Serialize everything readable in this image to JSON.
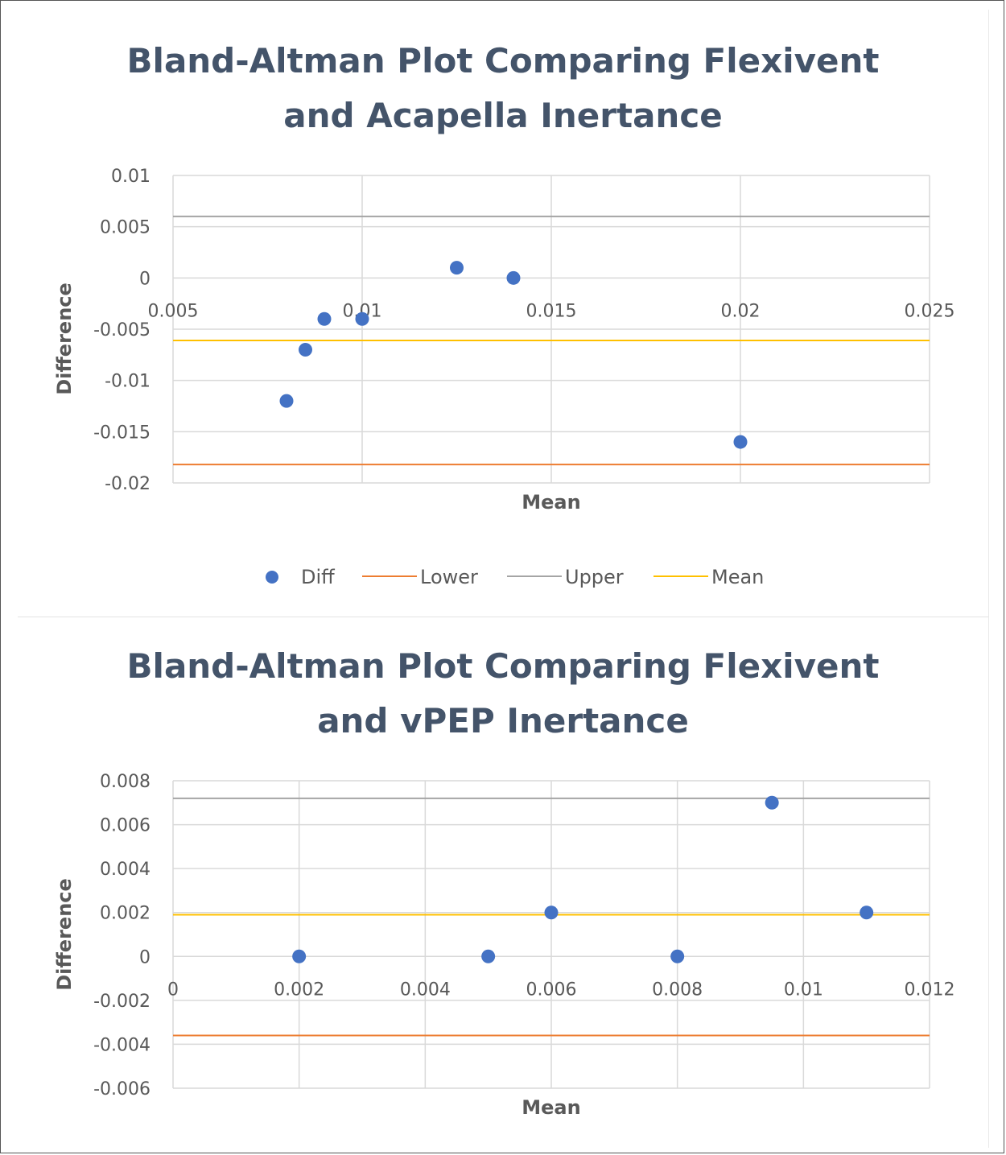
{
  "chart_data": [
    {
      "type": "scatter",
      "title_line1": "Bland-Altman Plot Comparing Flexivent",
      "title_line2": "and Acapella Inertance",
      "xlabel": "Mean",
      "ylabel": "Difference",
      "xlim": [
        0.005,
        0.025
      ],
      "ylim": [
        -0.02,
        0.01
      ],
      "x_ticks": [
        "0.005",
        "0.01",
        "0.015",
        "0.02",
        "0.025"
      ],
      "y_ticks": [
        "0.01",
        "0.005",
        "0",
        "-0.005",
        "-0.01",
        "-0.015",
        "-0.02"
      ],
      "grid": true,
      "legend_position": "bottom",
      "series": [
        {
          "name": "Diff",
          "kind": "scatter",
          "color": "#4472c4",
          "points": [
            [
              0.008,
              -0.012
            ],
            [
              0.0085,
              -0.007
            ],
            [
              0.009,
              -0.004
            ],
            [
              0.01,
              -0.004
            ],
            [
              0.0125,
              0.001
            ],
            [
              0.014,
              0.0
            ],
            [
              0.02,
              -0.016
            ]
          ]
        },
        {
          "name": "Lower",
          "kind": "hline",
          "color": "#ed7d31",
          "y": -0.0182
        },
        {
          "name": "Upper",
          "kind": "hline",
          "color": "#a5a5a5",
          "y": 0.006
        },
        {
          "name": "Mean",
          "kind": "hline",
          "color": "#ffc000",
          "y": -0.0061
        }
      ]
    },
    {
      "type": "scatter",
      "title_line1": "Bland-Altman Plot Comparing Flexivent",
      "title_line2": "and vPEP Inertance",
      "xlabel": "Mean",
      "ylabel": "Difference",
      "xlim": [
        0,
        0.012
      ],
      "ylim": [
        -0.006,
        0.008
      ],
      "x_ticks": [
        "0",
        "0.002",
        "0.004",
        "0.006",
        "0.008",
        "0.01",
        "0.012"
      ],
      "y_ticks": [
        "0.008",
        "0.006",
        "0.004",
        "0.002",
        "0",
        "-0.002",
        "-0.004",
        "-0.006"
      ],
      "grid": true,
      "series": [
        {
          "kind": "scatter",
          "color": "#4472c4",
          "points": [
            [
              0.002,
              0.0
            ],
            [
              0.005,
              0.0
            ],
            [
              0.006,
              0.002
            ],
            [
              0.008,
              0.0
            ],
            [
              0.0095,
              0.007
            ],
            [
              0.011,
              0.002
            ]
          ]
        },
        {
          "kind": "hline",
          "color": "#ed7d31",
          "y": -0.0036
        },
        {
          "kind": "hline",
          "color": "#a5a5a5",
          "y": 0.0072
        },
        {
          "kind": "hline",
          "color": "#ffc000",
          "y": 0.0019
        }
      ]
    }
  ]
}
